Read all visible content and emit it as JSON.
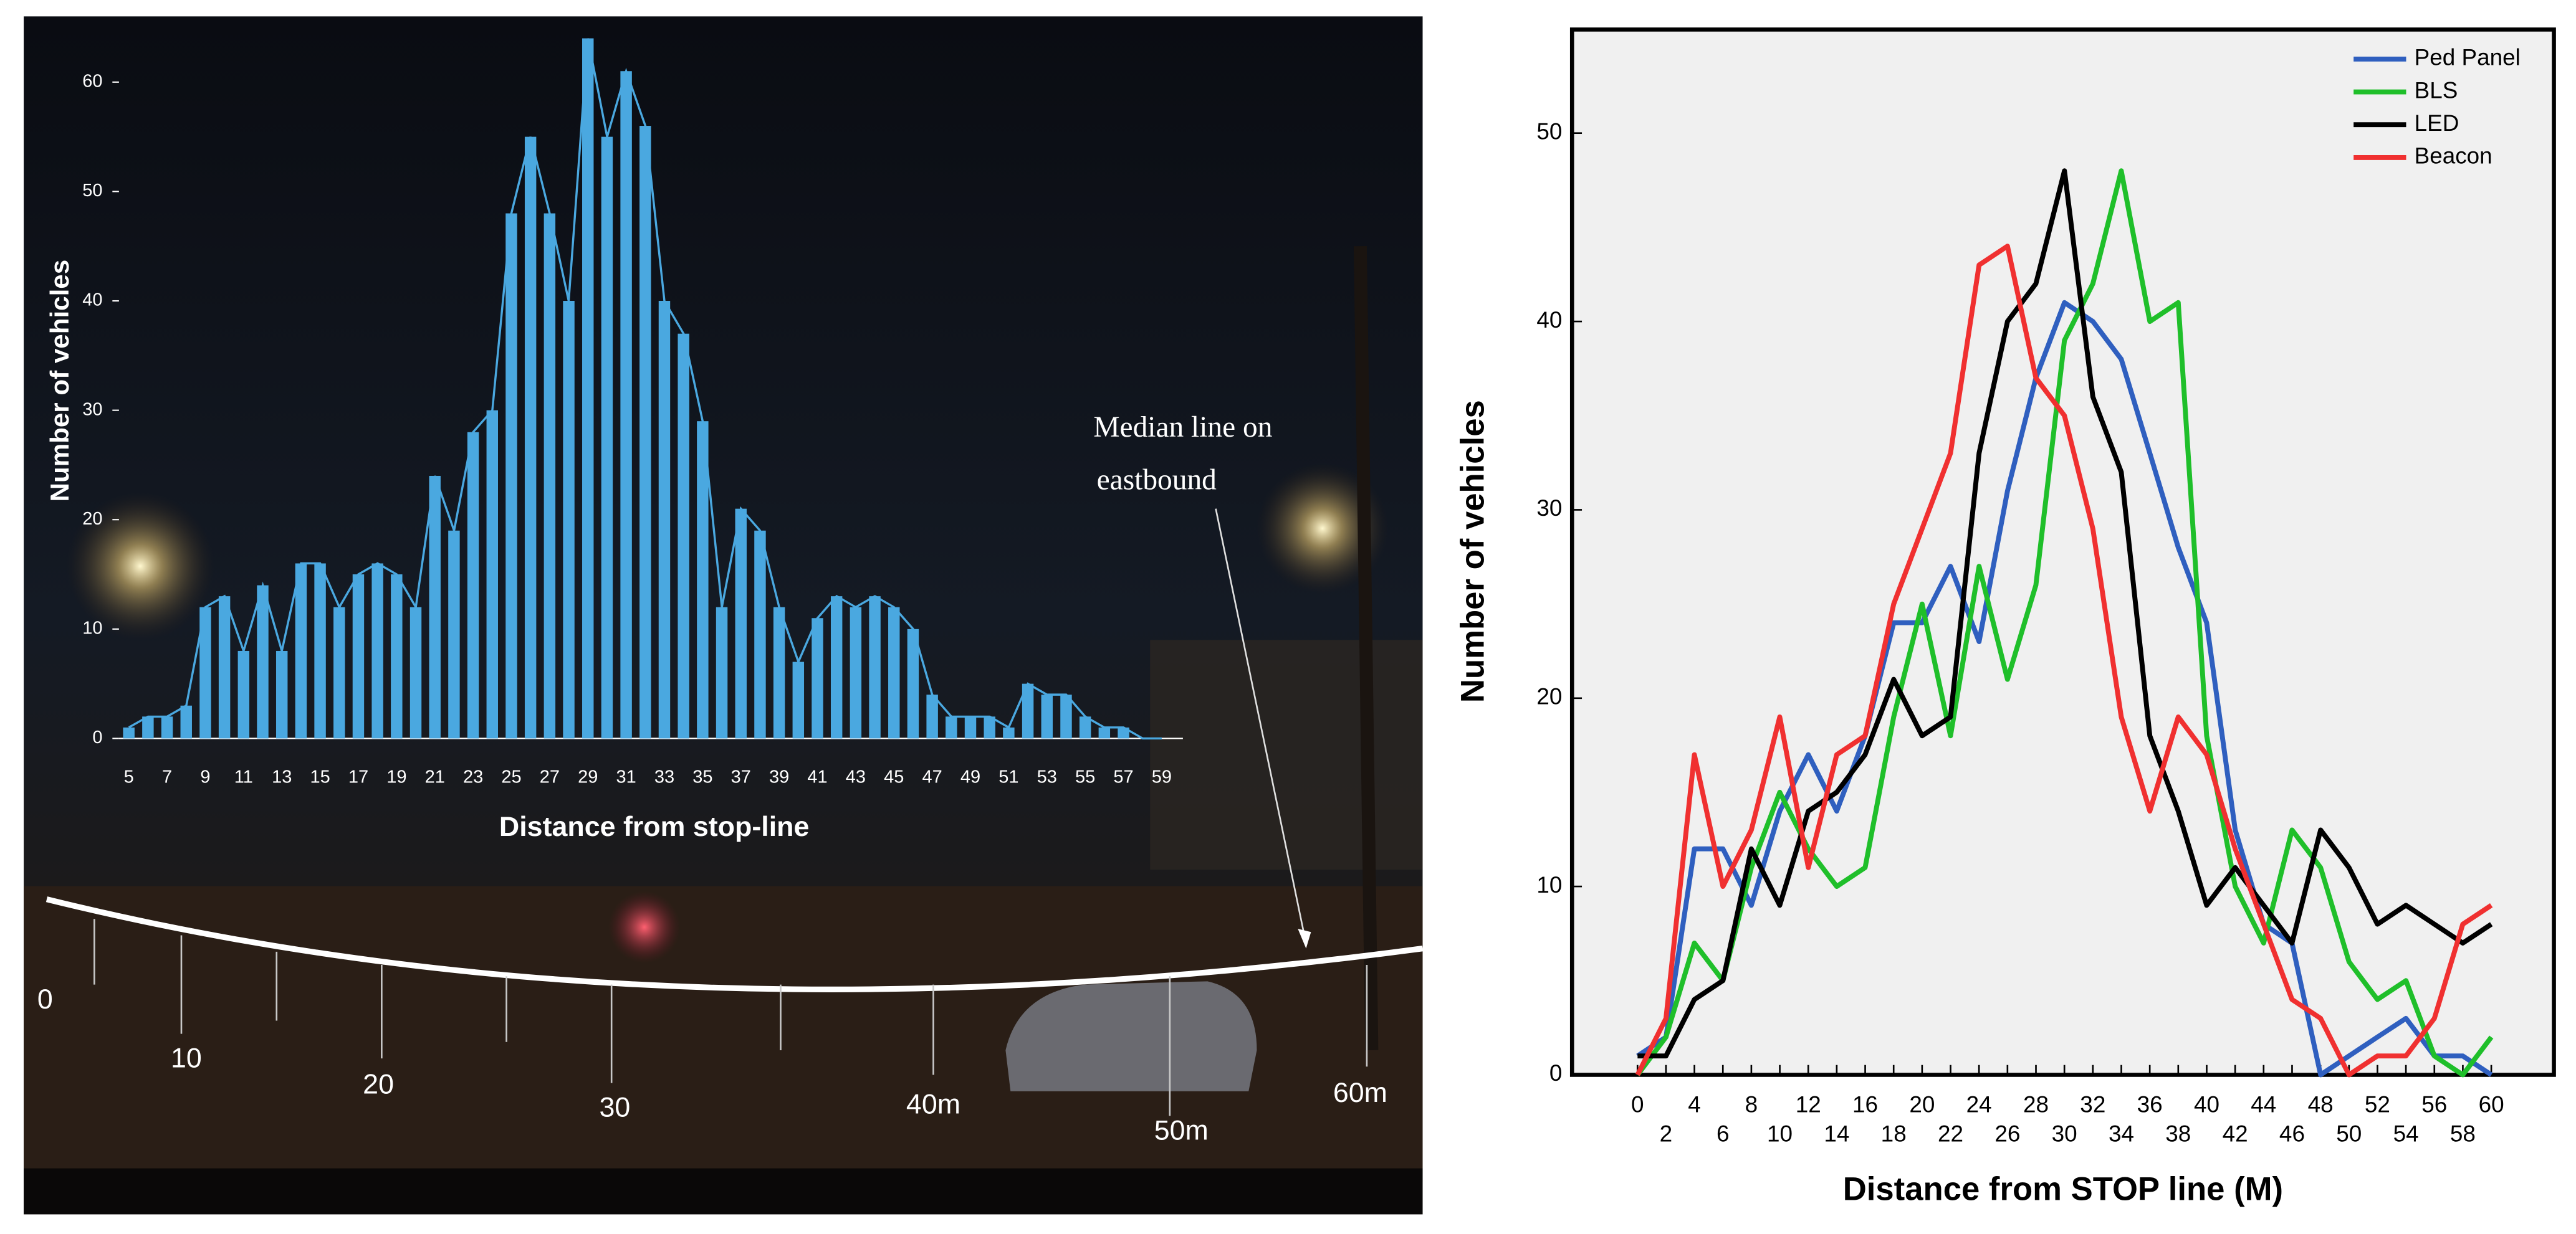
{
  "chart_data": [
    {
      "type": "bar",
      "x_label": "Distance from stop-line",
      "y_label": "Number of vehicles",
      "categories": [
        "5",
        null,
        "7",
        null,
        "9",
        null,
        "11",
        null,
        "13",
        null,
        "15",
        null,
        "17",
        null,
        "19",
        null,
        "21",
        null,
        "23",
        null,
        "25",
        null,
        "27",
        null,
        "29",
        null,
        "31",
        null,
        "33",
        null,
        "35",
        null,
        "37",
        null,
        "39",
        null,
        "41",
        null,
        "43",
        null,
        "45",
        null,
        "47",
        null,
        "49",
        null,
        "51",
        null,
        "53",
        null,
        "55",
        null,
        "57",
        null,
        "59"
      ],
      "values": [
        1,
        2,
        2,
        3,
        12,
        13,
        8,
        14,
        8,
        16,
        16,
        12,
        15,
        16,
        15,
        12,
        24,
        19,
        28,
        30,
        48,
        55,
        48,
        40,
        64,
        55,
        61,
        56,
        40,
        37,
        29,
        12,
        21,
        19,
        12,
        7,
        11,
        13,
        12,
        13,
        12,
        10,
        4,
        2,
        2,
        2,
        1,
        5,
        4,
        4,
        2,
        1,
        1,
        0,
        0
      ],
      "color": "#4aa8e0",
      "ylim": [
        0,
        65
      ],
      "yticks": [
        0,
        10,
        20,
        30,
        40,
        50,
        60
      ],
      "annotations": [
        "Median line on",
        "eastbound"
      ],
      "distance_marks": [
        "0",
        "10",
        "20",
        "30",
        "40m",
        "50m",
        "60m"
      ]
    },
    {
      "type": "line",
      "x_label": "Distance from STOP line (M)",
      "y_label": "Number of vehicles",
      "x": [
        0,
        2,
        4,
        6,
        8,
        10,
        12,
        14,
        16,
        18,
        20,
        22,
        24,
        26,
        28,
        30,
        32,
        34,
        36,
        38,
        40,
        42,
        44,
        46,
        48,
        50,
        52,
        54,
        56,
        58,
        60
      ],
      "series": [
        {
          "name": "Ped Panel",
          "color": "#2f5fbf",
          "values": [
            1,
            2,
            12,
            12,
            9,
            14,
            17,
            14,
            18,
            24,
            24,
            27,
            23,
            31,
            37,
            41,
            40,
            38,
            33,
            28,
            24,
            13,
            8,
            7,
            0,
            1,
            2,
            3,
            1,
            1,
            0
          ]
        },
        {
          "name": "BLS",
          "color": "#1fbf2a",
          "values": [
            0,
            2,
            7,
            5,
            11,
            15,
            12,
            10,
            11,
            19,
            25,
            18,
            27,
            21,
            26,
            39,
            42,
            48,
            40,
            41,
            18,
            10,
            7,
            13,
            11,
            6,
            4,
            5,
            1,
            0,
            2
          ]
        },
        {
          "name": "LED",
          "color": "#000000",
          "values": [
            1,
            1,
            4,
            5,
            12,
            9,
            14,
            15,
            17,
            21,
            18,
            19,
            33,
            40,
            42,
            48,
            36,
            32,
            18,
            14,
            9,
            11,
            9,
            7,
            13,
            11,
            8,
            9,
            8,
            7,
            8
          ]
        },
        {
          "name": "Beacon",
          "color": "#f03030",
          "values": [
            0,
            3,
            17,
            10,
            13,
            19,
            11,
            17,
            18,
            25,
            29,
            33,
            43,
            44,
            37,
            35,
            29,
            19,
            14,
            19,
            17,
            12,
            8,
            4,
            3,
            0,
            1,
            1,
            3,
            8,
            9
          ]
        }
      ],
      "xlim": [
        -4.6,
        64.4
      ],
      "ylim": [
        0,
        55.5
      ],
      "xticks": [
        0,
        2,
        4,
        6,
        8,
        10,
        12,
        14,
        16,
        18,
        20,
        22,
        24,
        26,
        28,
        30,
        32,
        34,
        36,
        38,
        40,
        42,
        44,
        46,
        48,
        50,
        52,
        54,
        56,
        58,
        60
      ],
      "yticks": [
        0,
        10,
        20,
        30,
        40,
        50
      ],
      "legend": "upper right",
      "background": "#f0f0f0"
    }
  ]
}
